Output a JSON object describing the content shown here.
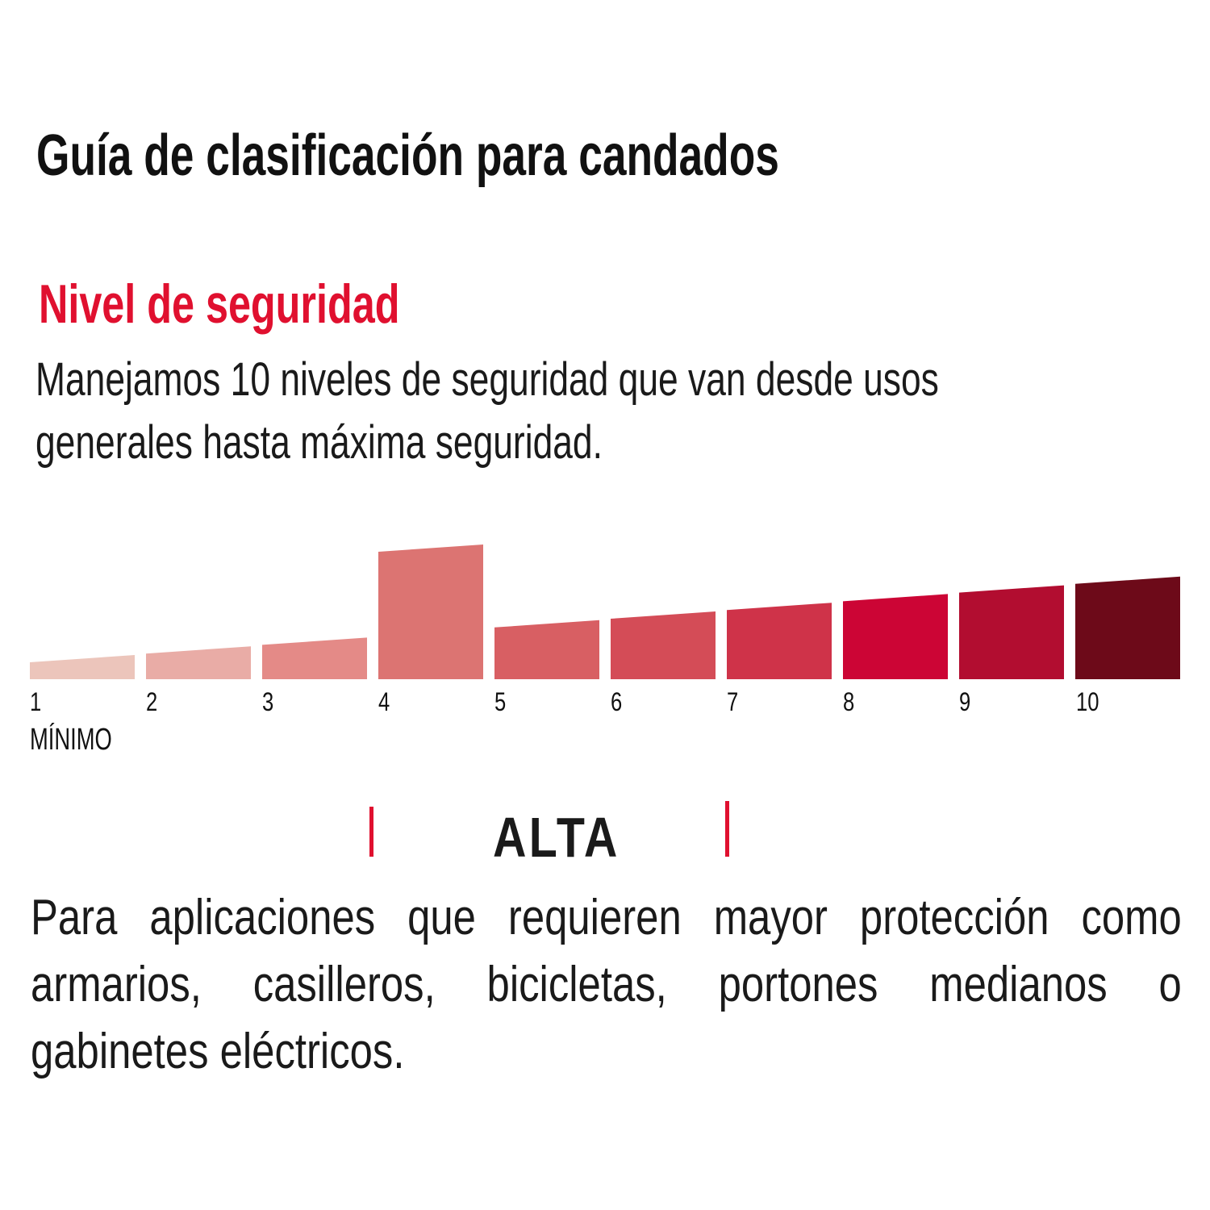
{
  "title": "Guía de clasificación para candados",
  "subtitle": "Nivel de seguridad",
  "intro_lines": [
    "Manejamos 10 niveles de seguridad que van desde usos",
    "generales hasta máxima seguridad."
  ],
  "chart_data": {
    "type": "bar",
    "categories": [
      "1",
      "2",
      "3",
      "4",
      "5",
      "6",
      "7",
      "8",
      "9",
      "10"
    ],
    "values": [
      1,
      2,
      3,
      4,
      5,
      6,
      7,
      8,
      9,
      10
    ],
    "highlighted": "4",
    "colors": [
      "#ecc5bb",
      "#e9aca6",
      "#e48a87",
      "#dc7472",
      "#d85f63",
      "#d44c57",
      "#cf3349",
      "#cc0535",
      "#b20d30",
      "#6d0a19"
    ],
    "min_label": "MÍNIMO",
    "title": "",
    "xlabel": "",
    "ylabel": ""
  },
  "category": {
    "label": "ALTA",
    "accent": "#e0102f"
  },
  "description_lines": [
    "Para aplicaciones que requieren mayor protección como",
    "armarios, casilleros, bicicletas, portones medianos o",
    "gabinetes eléctricos."
  ]
}
